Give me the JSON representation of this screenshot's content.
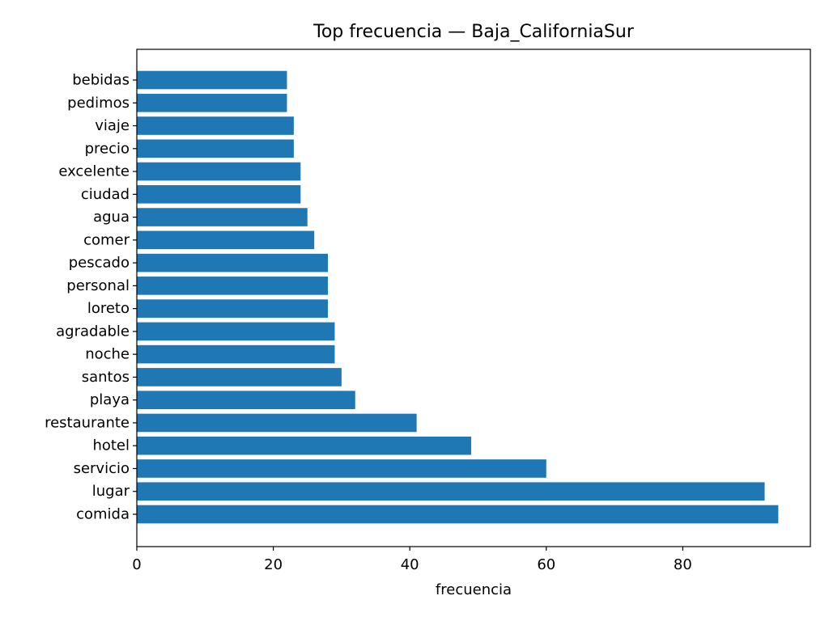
{
  "chart_data": {
    "type": "bar",
    "orientation": "horizontal",
    "title": "Top frecuencia — Baja_CaliforniaSur",
    "xlabel": "frecuencia",
    "ylabel": "",
    "xlim": [
      0,
      98.7
    ],
    "xticks": [
      0,
      20,
      40,
      60,
      80
    ],
    "grid": false,
    "bar_color": "#1f77b4",
    "categories": [
      "comida",
      "lugar",
      "servicio",
      "hotel",
      "restaurante",
      "playa",
      "santos",
      "noche",
      "agradable",
      "loreto",
      "personal",
      "pescado",
      "comer",
      "agua",
      "ciudad",
      "excelente",
      "precio",
      "viaje",
      "pedimos",
      "bebidas"
    ],
    "values": [
      94,
      92,
      60,
      49,
      41,
      32,
      30,
      29,
      29,
      28,
      28,
      28,
      26,
      25,
      24,
      24,
      23,
      23,
      22,
      22
    ]
  }
}
